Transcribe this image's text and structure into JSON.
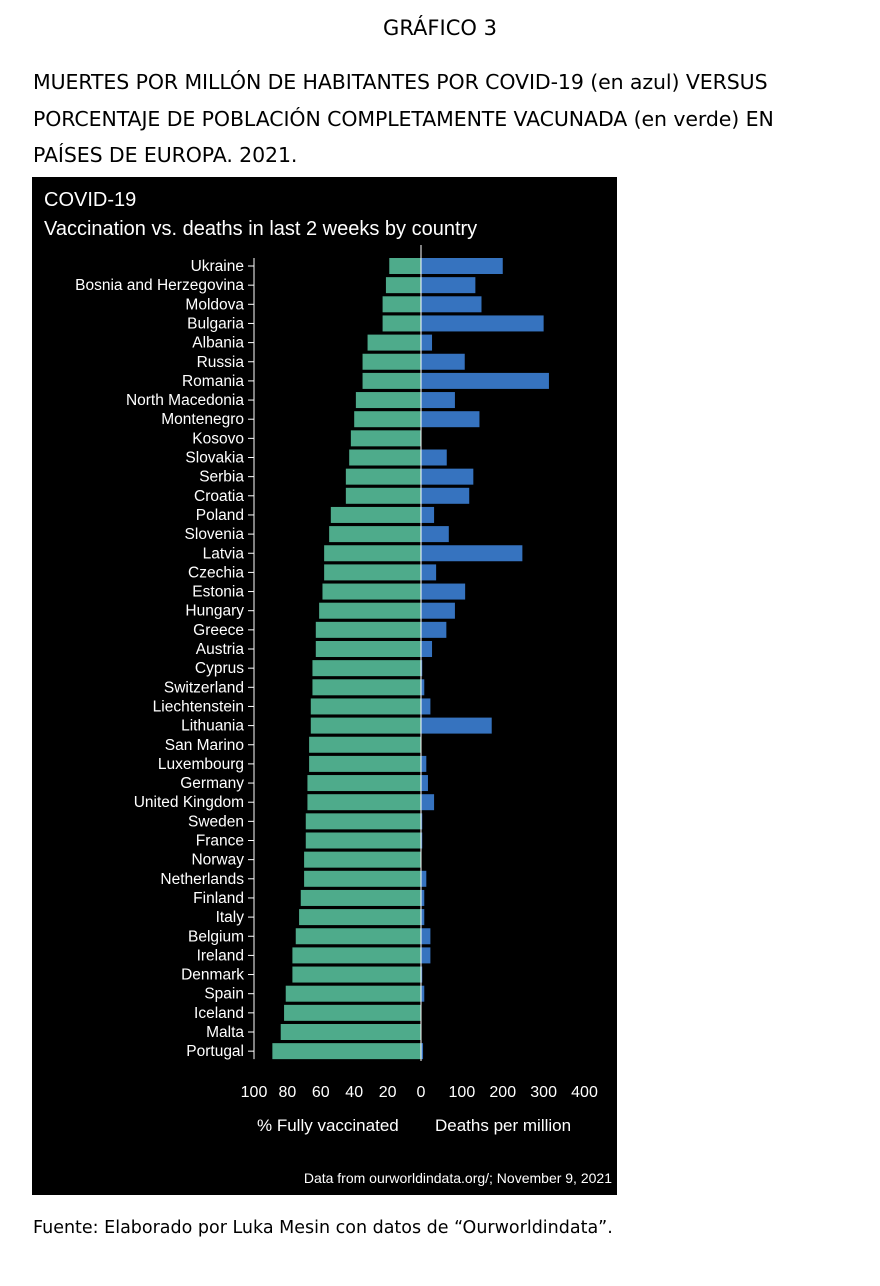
{
  "document": {
    "heading": "GRÁFICO 3",
    "title_lines": [
      "MUERTES POR MILLÓN DE HABITANTES POR COVID-19 (en azul) VERSUS",
      "PORCENTAJE DE POBLACIÓN COMPLETAMENTE VACUNADA (en verde) EN",
      "PAÍSES DE EUROPA. 2021."
    ],
    "source": "Fuente: Elaborado por Luka Mesin con datos de “Ourworldindata”."
  },
  "chart_data": {
    "type": "bar",
    "orientation": "horizontal-diverging",
    "title": "COVID-19",
    "subtitle": "Vaccination vs. deaths in last 2 weeks by country",
    "xlabel_left": "% Fully vaccinated",
    "xlabel_right": "Deaths per million",
    "footnote": "Data from ourworldindata.org/;  November 9, 2021",
    "left_axis": {
      "range": [
        0,
        100
      ],
      "ticks": [
        "100",
        "80",
        "60",
        "40",
        "20"
      ]
    },
    "right_axis": {
      "range": [
        0,
        400
      ],
      "ticks": [
        "0",
        "100",
        "200",
        "300",
        "400"
      ]
    },
    "grid": false,
    "legend": "none",
    "colors": {
      "vaccinated": "#4eab8b",
      "deaths": "#3673bf",
      "background": "#000000",
      "text": "#ffffff"
    },
    "categories": [
      "Ukraine",
      "Bosnia and Herzegovina",
      "Moldova",
      "Bulgaria",
      "Albania",
      "Russia",
      "Romania",
      "North Macedonia",
      "Montenegro",
      "Kosovo",
      "Slovakia",
      "Serbia",
      "Croatia",
      "Poland",
      "Slovenia",
      "Latvia",
      "Czechia",
      "Estonia",
      "Hungary",
      "Greece",
      "Austria",
      "Cyprus",
      "Switzerland",
      "Liechtenstein",
      "Lithuania",
      "San Marino",
      "Luxembourg",
      "Germany",
      "United Kingdom",
      "Sweden",
      "France",
      "Norway",
      "Netherlands",
      "Finland",
      "Italy",
      "Belgium",
      "Ireland",
      "Denmark",
      "Spain",
      "Iceland",
      "Malta",
      "Portugal"
    ],
    "series": [
      {
        "name": "% Fully vaccinated",
        "values": [
          19,
          21,
          23,
          23,
          32,
          35,
          35,
          39,
          40,
          42,
          43,
          45,
          45,
          54,
          55,
          58,
          58,
          59,
          61,
          63,
          63,
          65,
          65,
          66,
          66,
          67,
          67,
          68,
          68,
          69,
          69,
          70,
          70,
          72,
          73,
          75,
          77,
          77,
          81,
          82,
          84,
          89
        ]
      },
      {
        "name": "Deaths per million",
        "values": [
          200,
          133,
          148,
          300,
          27,
          107,
          313,
          83,
          143,
          0,
          63,
          128,
          118,
          32,
          68,
          248,
          37,
          108,
          83,
          62,
          27,
          3,
          8,
          23,
          173,
          0,
          13,
          17,
          32,
          3,
          3,
          0,
          13,
          8,
          8,
          23,
          23,
          3,
          8,
          0,
          0,
          5
        ]
      }
    ]
  }
}
